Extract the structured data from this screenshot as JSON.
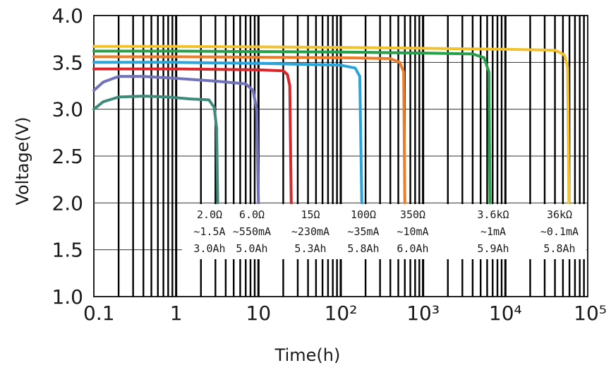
{
  "chart_data": {
    "type": "line",
    "title": "",
    "xlabel": "Time(h)",
    "ylabel": "Voltage(V)",
    "x_scale": "log",
    "xlim": [
      0.1,
      100000
    ],
    "ylim": [
      1.0,
      4.0
    ],
    "grid": true,
    "x_tick_labels": [
      "0.1",
      "1",
      "10",
      "10²",
      "10³",
      "10⁴",
      "10⁵"
    ],
    "x_ticks": [
      0.1,
      1,
      10,
      100,
      1000,
      10000,
      100000
    ],
    "y_tick_labels": [
      "1.0",
      "1.5",
      "2.0",
      "2.5",
      "3.0",
      "3.5",
      "4.0"
    ],
    "y_ticks": [
      1.0,
      1.5,
      2.0,
      2.5,
      3.0,
      3.5,
      4.0
    ],
    "series": [
      {
        "color": "#3d8a7a",
        "annotation": [
          "2.0Ω",
          "~1.5A",
          "3.0Ah"
        ],
        "points": [
          [
            0.1,
            3.0
          ],
          [
            0.13,
            3.08
          ],
          [
            0.2,
            3.13
          ],
          [
            0.4,
            3.14
          ],
          [
            0.8,
            3.13
          ],
          [
            1.5,
            3.11
          ],
          [
            2.5,
            3.1
          ],
          [
            2.9,
            3.02
          ],
          [
            3.1,
            2.8
          ],
          [
            3.2,
            2.0
          ]
        ]
      },
      {
        "color": "#7272bb",
        "annotation": [
          "6.0Ω",
          "~550mA",
          "5.0Ah"
        ],
        "points": [
          [
            0.1,
            3.2
          ],
          [
            0.13,
            3.29
          ],
          [
            0.2,
            3.35
          ],
          [
            0.4,
            3.35
          ],
          [
            1,
            3.33
          ],
          [
            3,
            3.3
          ],
          [
            7,
            3.27
          ],
          [
            8.6,
            3.2
          ],
          [
            9.5,
            3.0
          ],
          [
            10,
            2.0
          ]
        ]
      },
      {
        "color": "#d9262a",
        "annotation": [
          "15Ω",
          "~230mA",
          "5.3Ah"
        ],
        "points": [
          [
            0.1,
            3.43
          ],
          [
            1,
            3.43
          ],
          [
            10,
            3.42
          ],
          [
            20,
            3.41
          ],
          [
            22.5,
            3.37
          ],
          [
            24,
            3.25
          ],
          [
            25,
            2.0
          ]
        ]
      },
      {
        "color": "#2aa5dc",
        "annotation": [
          "100Ω",
          "~35mA",
          "5.8Ah"
        ],
        "points": [
          [
            0.1,
            3.5
          ],
          [
            1,
            3.5
          ],
          [
            10,
            3.49
          ],
          [
            100,
            3.47
          ],
          [
            150,
            3.44
          ],
          [
            170,
            3.35
          ],
          [
            180,
            2.0
          ]
        ]
      },
      {
        "color": "#ee7d27",
        "annotation": [
          "350Ω",
          "~10mA",
          "6.0Ah"
        ],
        "points": [
          [
            0.1,
            3.56
          ],
          [
            1,
            3.56
          ],
          [
            10,
            3.555
          ],
          [
            100,
            3.55
          ],
          [
            400,
            3.54
          ],
          [
            520,
            3.5
          ],
          [
            580,
            3.4
          ],
          [
            600,
            2.0
          ]
        ]
      },
      {
        "color": "#27a04a",
        "annotation": [
          "3.6kΩ",
          "~1mA",
          "5.9Ah"
        ],
        "points": [
          [
            0.1,
            3.62
          ],
          [
            1,
            3.62
          ],
          [
            10,
            3.615
          ],
          [
            100,
            3.61
          ],
          [
            1000,
            3.6
          ],
          [
            4000,
            3.59
          ],
          [
            5500,
            3.55
          ],
          [
            6300,
            3.4
          ],
          [
            6500,
            2.0
          ]
        ]
      },
      {
        "color": "#f1c12e",
        "annotation": [
          "36kΩ",
          "~0.1mA",
          "5.8Ah"
        ],
        "points": [
          [
            0.1,
            3.67
          ],
          [
            1,
            3.67
          ],
          [
            10,
            3.665
          ],
          [
            100,
            3.66
          ],
          [
            1000,
            3.65
          ],
          [
            10000,
            3.64
          ],
          [
            40000,
            3.63
          ],
          [
            52000,
            3.58
          ],
          [
            57000,
            3.45
          ],
          [
            59000,
            2.0
          ]
        ]
      }
    ]
  }
}
